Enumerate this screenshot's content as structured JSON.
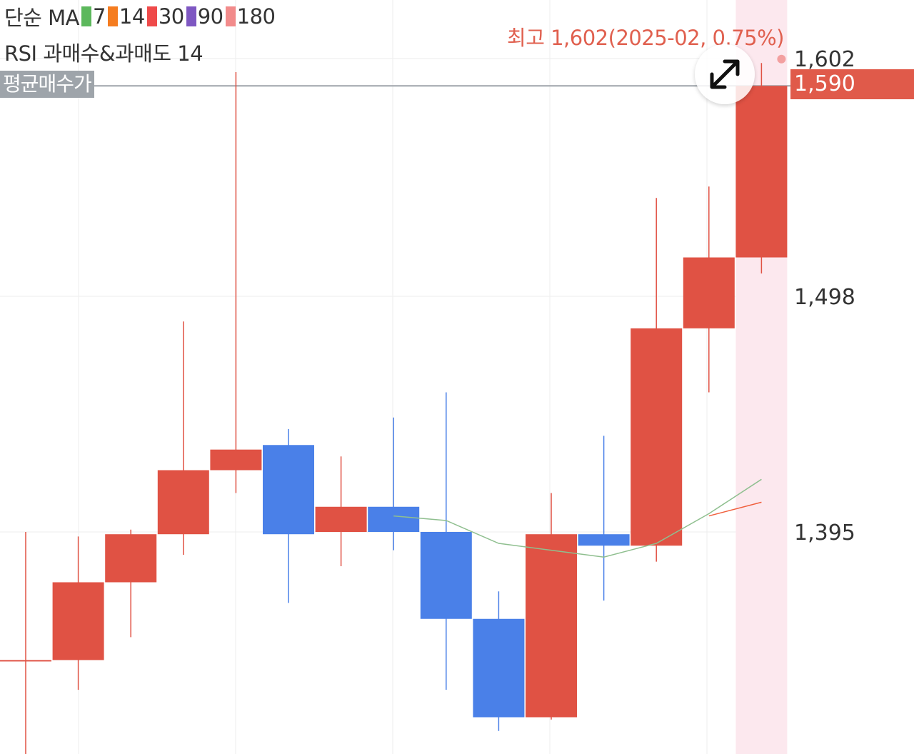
{
  "legend": {
    "prefix": "단순 MA",
    "items": [
      {
        "label": "7",
        "color": "#5cb85c"
      },
      {
        "label": "14",
        "color": "#f57c1f"
      },
      {
        "label": "30",
        "color": "#ef4a4a"
      },
      {
        "label": "90",
        "color": "#7e57c2"
      },
      {
        "label": "180",
        "color": "#f28b8b"
      }
    ]
  },
  "rsi_label": "RSI 과매수&과매도 14",
  "avg_price_label": "평균매수가",
  "current_price_label": "1,590",
  "high_label": "최고 1,602(2025-02, 0.75%)",
  "colors": {
    "up": "#e05244",
    "down": "#4a80e8",
    "ma7": "#8fbf8f",
    "ma14": "#f0603e",
    "grid": "#eeeeee",
    "avg_line": "#9ea4aa",
    "highlight": "#fce8ee"
  },
  "chart_data": {
    "type": "candlestick",
    "y_ticks": [
      {
        "value": 1602,
        "label": "1,602"
      },
      {
        "value": 1498,
        "label": "1,498"
      },
      {
        "value": 1395,
        "label": "1,395"
      }
    ],
    "avg_price": 1590,
    "current_price": 1590,
    "high": {
      "value": 1602,
      "label": "최고 1,602(2025-02, 0.75%)"
    },
    "candles": [
      {
        "o": 1339,
        "h": 1395,
        "l": 1296,
        "c": 1339
      },
      {
        "o": 1339,
        "h": 1393,
        "l": 1326,
        "c": 1373
      },
      {
        "o": 1373,
        "h": 1396,
        "l": 1349,
        "c": 1394
      },
      {
        "o": 1394,
        "h": 1487,
        "l": 1385,
        "c": 1422
      },
      {
        "o": 1422,
        "h": 1596,
        "l": 1412,
        "c": 1431
      },
      {
        "o": 1433,
        "h": 1440,
        "l": 1364,
        "c": 1394
      },
      {
        "o": 1395,
        "h": 1428,
        "l": 1380,
        "c": 1406
      },
      {
        "o": 1406,
        "h": 1445,
        "l": 1387,
        "c": 1395
      },
      {
        "o": 1395,
        "h": 1456,
        "l": 1326,
        "c": 1357
      },
      {
        "o": 1357,
        "h": 1369,
        "l": 1308,
        "c": 1314
      },
      {
        "o": 1314,
        "h": 1412,
        "l": 1313,
        "c": 1394
      },
      {
        "o": 1394,
        "h": 1437,
        "l": 1365,
        "c": 1389
      },
      {
        "o": 1389,
        "h": 1541,
        "l": 1382,
        "c": 1484
      },
      {
        "o": 1484,
        "h": 1546,
        "l": 1456,
        "c": 1515
      },
      {
        "o": 1515,
        "h": 1600,
        "l": 1508,
        "c": 1590
      }
    ],
    "ma7": [
      null,
      null,
      null,
      null,
      null,
      null,
      null,
      1402,
      1400,
      1390,
      1387,
      1384,
      1390,
      1403,
      1418
    ],
    "ma14": [
      null,
      null,
      null,
      null,
      null,
      null,
      null,
      null,
      null,
      null,
      null,
      null,
      null,
      1402,
      1408
    ],
    "highlight_index": 14
  }
}
